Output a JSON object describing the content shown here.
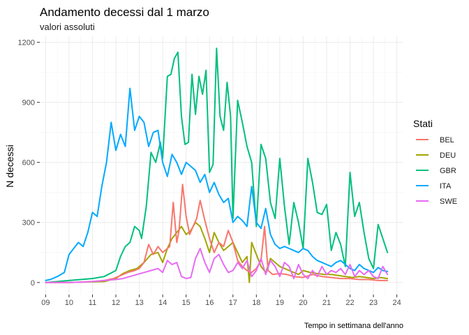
{
  "chart_data": {
    "type": "line",
    "title": "Andamento decessi dal 1 marzo",
    "subtitle": "valori assoluti",
    "xlabel": "",
    "ylabel": "N decessi",
    "caption": "Tempo in settimana dell'anno",
    "xlim": [
      8.75,
      24.25
    ],
    "ylim": [
      -60,
      1230
    ],
    "x_ticks": [
      "09",
      "10",
      "11",
      "12",
      "13",
      "14",
      "15",
      "16",
      "17",
      "18",
      "19",
      "20",
      "21",
      "22",
      "23",
      "24"
    ],
    "x_tick_values": [
      9,
      10,
      11,
      12,
      13,
      14,
      15,
      16,
      17,
      18,
      19,
      20,
      21,
      22,
      23,
      24
    ],
    "y_ticks": [
      0,
      300,
      600,
      900,
      1200
    ],
    "legend": {
      "title": "Stati",
      "position": "right"
    },
    "series": [
      {
        "name": "BEL",
        "color": "#F8766D",
        "x": [
          9,
          9.5,
          10,
          10.5,
          11,
          11.5,
          11.9,
          12.2,
          12.5,
          12.8,
          13,
          13.2,
          13.4,
          13.6,
          13.8,
          14,
          14.2,
          14.3,
          14.45,
          14.6,
          14.7,
          14.85,
          15,
          15.15,
          15.3,
          15.45,
          15.6,
          15.8,
          16,
          16.2,
          16.4,
          16.6,
          16.8,
          17,
          17.2,
          17.4,
          17.6,
          17.8,
          18,
          18.2,
          18.35,
          18.5,
          18.7,
          19,
          19.3,
          19.6,
          20,
          20.4,
          20.8,
          21.2,
          21.6,
          22,
          22.4,
          22.8,
          23.2,
          23.6
        ],
        "y": [
          0,
          0,
          0,
          2,
          5,
          10,
          20,
          35,
          50,
          60,
          70,
          100,
          190,
          140,
          180,
          150,
          170,
          180,
          400,
          200,
          260,
          490,
          330,
          240,
          280,
          320,
          410,
          310,
          220,
          150,
          200,
          180,
          260,
          200,
          110,
          80,
          60,
          50,
          70,
          110,
          280,
          60,
          40,
          45,
          40,
          30,
          25,
          40,
          30,
          25,
          20,
          20,
          15,
          15,
          10,
          10
        ]
      },
      {
        "name": "DEU",
        "color": "#A3A500",
        "x": [
          9,
          9.5,
          10,
          10.5,
          11,
          11.5,
          12,
          12.3,
          12.6,
          12.9,
          13.2,
          13.5,
          13.8,
          14,
          14.2,
          14.4,
          14.6,
          14.8,
          15,
          15.2,
          15.4,
          15.6,
          15.8,
          16,
          16.2,
          16.4,
          16.6,
          16.8,
          17,
          17.2,
          17.4,
          17.6,
          17.7,
          17.8,
          18,
          18.2,
          18.4,
          18.6,
          18.8,
          19,
          19.2,
          19.4,
          19.6,
          19.8,
          20,
          20.3,
          20.6,
          20.9,
          21.2,
          21.5,
          21.8,
          22.1,
          22.4,
          22.7,
          23,
          23.3,
          23.6
        ],
        "y": [
          0,
          0,
          0,
          2,
          3,
          5,
          20,
          45,
          60,
          70,
          100,
          140,
          150,
          100,
          170,
          220,
          250,
          280,
          240,
          260,
          300,
          280,
          220,
          150,
          250,
          200,
          160,
          180,
          200,
          150,
          100,
          130,
          0,
          200,
          140,
          80,
          50,
          120,
          100,
          80,
          70,
          60,
          50,
          40,
          60,
          50,
          45,
          40,
          40,
          35,
          30,
          25,
          30,
          25,
          20,
          25,
          20
        ]
      },
      {
        "name": "GBR",
        "color": "#00BF7D",
        "x": [
          9,
          9.5,
          10,
          10.5,
          11,
          11.5,
          12,
          12.2,
          12.4,
          12.6,
          12.8,
          13,
          13.1,
          13.3,
          13.5,
          13.7,
          13.9,
          14,
          14.2,
          14.35,
          14.5,
          14.65,
          14.8,
          14.95,
          15.1,
          15.25,
          15.4,
          15.55,
          15.7,
          15.85,
          16,
          16.15,
          16.3,
          16.45,
          16.6,
          16.75,
          16.9,
          17,
          17.2,
          17.4,
          17.6,
          17.8,
          18,
          18.2,
          18.4,
          18.6,
          18.8,
          19,
          19.2,
          19.4,
          19.6,
          19.8,
          20,
          20.2,
          20.4,
          20.6,
          20.8,
          21,
          21.2,
          21.4,
          21.6,
          21.8,
          22,
          22.2,
          22.4,
          22.6,
          22.8,
          23,
          23.2,
          23.4,
          23.6
        ],
        "y": [
          0,
          5,
          10,
          15,
          20,
          30,
          60,
          130,
          180,
          200,
          280,
          260,
          220,
          380,
          650,
          600,
          700,
          620,
          1030,
          1040,
          1120,
          1150,
          830,
          690,
          700,
          1040,
          840,
          1030,
          940,
          1060,
          550,
          590,
          1170,
          830,
          760,
          1000,
          830,
          320,
          910,
          800,
          680,
          600,
          280,
          690,
          620,
          400,
          320,
          620,
          380,
          190,
          400,
          300,
          170,
          620,
          500,
          350,
          340,
          390,
          160,
          250,
          190,
          80,
          550,
          330,
          400,
          250,
          120,
          70,
          290,
          220,
          150
        ]
      },
      {
        "name": "ITA",
        "color": "#00A9FF",
        "x": [
          9,
          9.2,
          9.5,
          9.8,
          10,
          10.2,
          10.4,
          10.6,
          10.8,
          11,
          11.2,
          11.4,
          11.6,
          11.8,
          12,
          12.2,
          12.4,
          12.6,
          12.8,
          13,
          13.2,
          13.4,
          13.6,
          13.8,
          14,
          14.2,
          14.4,
          14.6,
          14.8,
          15,
          15.2,
          15.4,
          15.6,
          15.8,
          16,
          16.2,
          16.4,
          16.6,
          16.8,
          17,
          17.2,
          17.4,
          17.6,
          17.8,
          18,
          18.2,
          18.4,
          18.6,
          18.8,
          19,
          19.2,
          19.4,
          19.6,
          19.8,
          20,
          20.2,
          20.4,
          20.6,
          20.8,
          21,
          21.2,
          21.4,
          21.6,
          21.8,
          22,
          22.2,
          22.4,
          22.6,
          22.8,
          23,
          23.2,
          23.4,
          23.6
        ],
        "y": [
          10,
          15,
          30,
          50,
          140,
          170,
          200,
          180,
          250,
          350,
          330,
          480,
          600,
          800,
          660,
          740,
          680,
          970,
          760,
          830,
          800,
          680,
          750,
          760,
          600,
          530,
          640,
          600,
          540,
          600,
          580,
          560,
          500,
          540,
          450,
          500,
          440,
          400,
          420,
          300,
          330,
          310,
          280,
          480,
          300,
          270,
          370,
          240,
          190,
          170,
          180,
          170,
          160,
          150,
          170,
          160,
          130,
          110,
          100,
          90,
          80,
          100,
          110,
          90,
          70,
          60,
          90,
          70,
          60,
          50,
          75,
          60,
          55
        ]
      },
      {
        "name": "SWE",
        "color": "#E76BF3",
        "x": [
          9,
          9.5,
          10,
          10.5,
          11,
          11.5,
          12,
          12.3,
          12.6,
          12.9,
          13.2,
          13.5,
          13.8,
          14,
          14.2,
          14.4,
          14.6,
          14.8,
          15,
          15.2,
          15.4,
          15.6,
          15.8,
          16,
          16.2,
          16.4,
          16.6,
          16.8,
          17,
          17.2,
          17.4,
          17.6,
          17.8,
          18,
          18.2,
          18.4,
          18.6,
          18.8,
          19,
          19.2,
          19.4,
          19.6,
          19.8,
          20,
          20.2,
          20.4,
          20.6,
          20.8,
          21,
          21.2,
          21.4,
          21.6,
          21.8,
          22,
          22.2,
          22.4,
          22.6,
          22.8,
          23,
          23.2,
          23.4,
          23.6
        ],
        "y": [
          0,
          0,
          0,
          2,
          5,
          10,
          15,
          20,
          30,
          40,
          50,
          60,
          70,
          50,
          110,
          90,
          100,
          30,
          20,
          25,
          120,
          170,
          100,
          50,
          120,
          140,
          90,
          50,
          60,
          100,
          70,
          110,
          30,
          60,
          120,
          40,
          110,
          80,
          30,
          100,
          80,
          20,
          90,
          40,
          20,
          60,
          30,
          80,
          40,
          60,
          50,
          70,
          40,
          90,
          30,
          60,
          40,
          60,
          30,
          20,
          80,
          40
        ]
      }
    ]
  }
}
